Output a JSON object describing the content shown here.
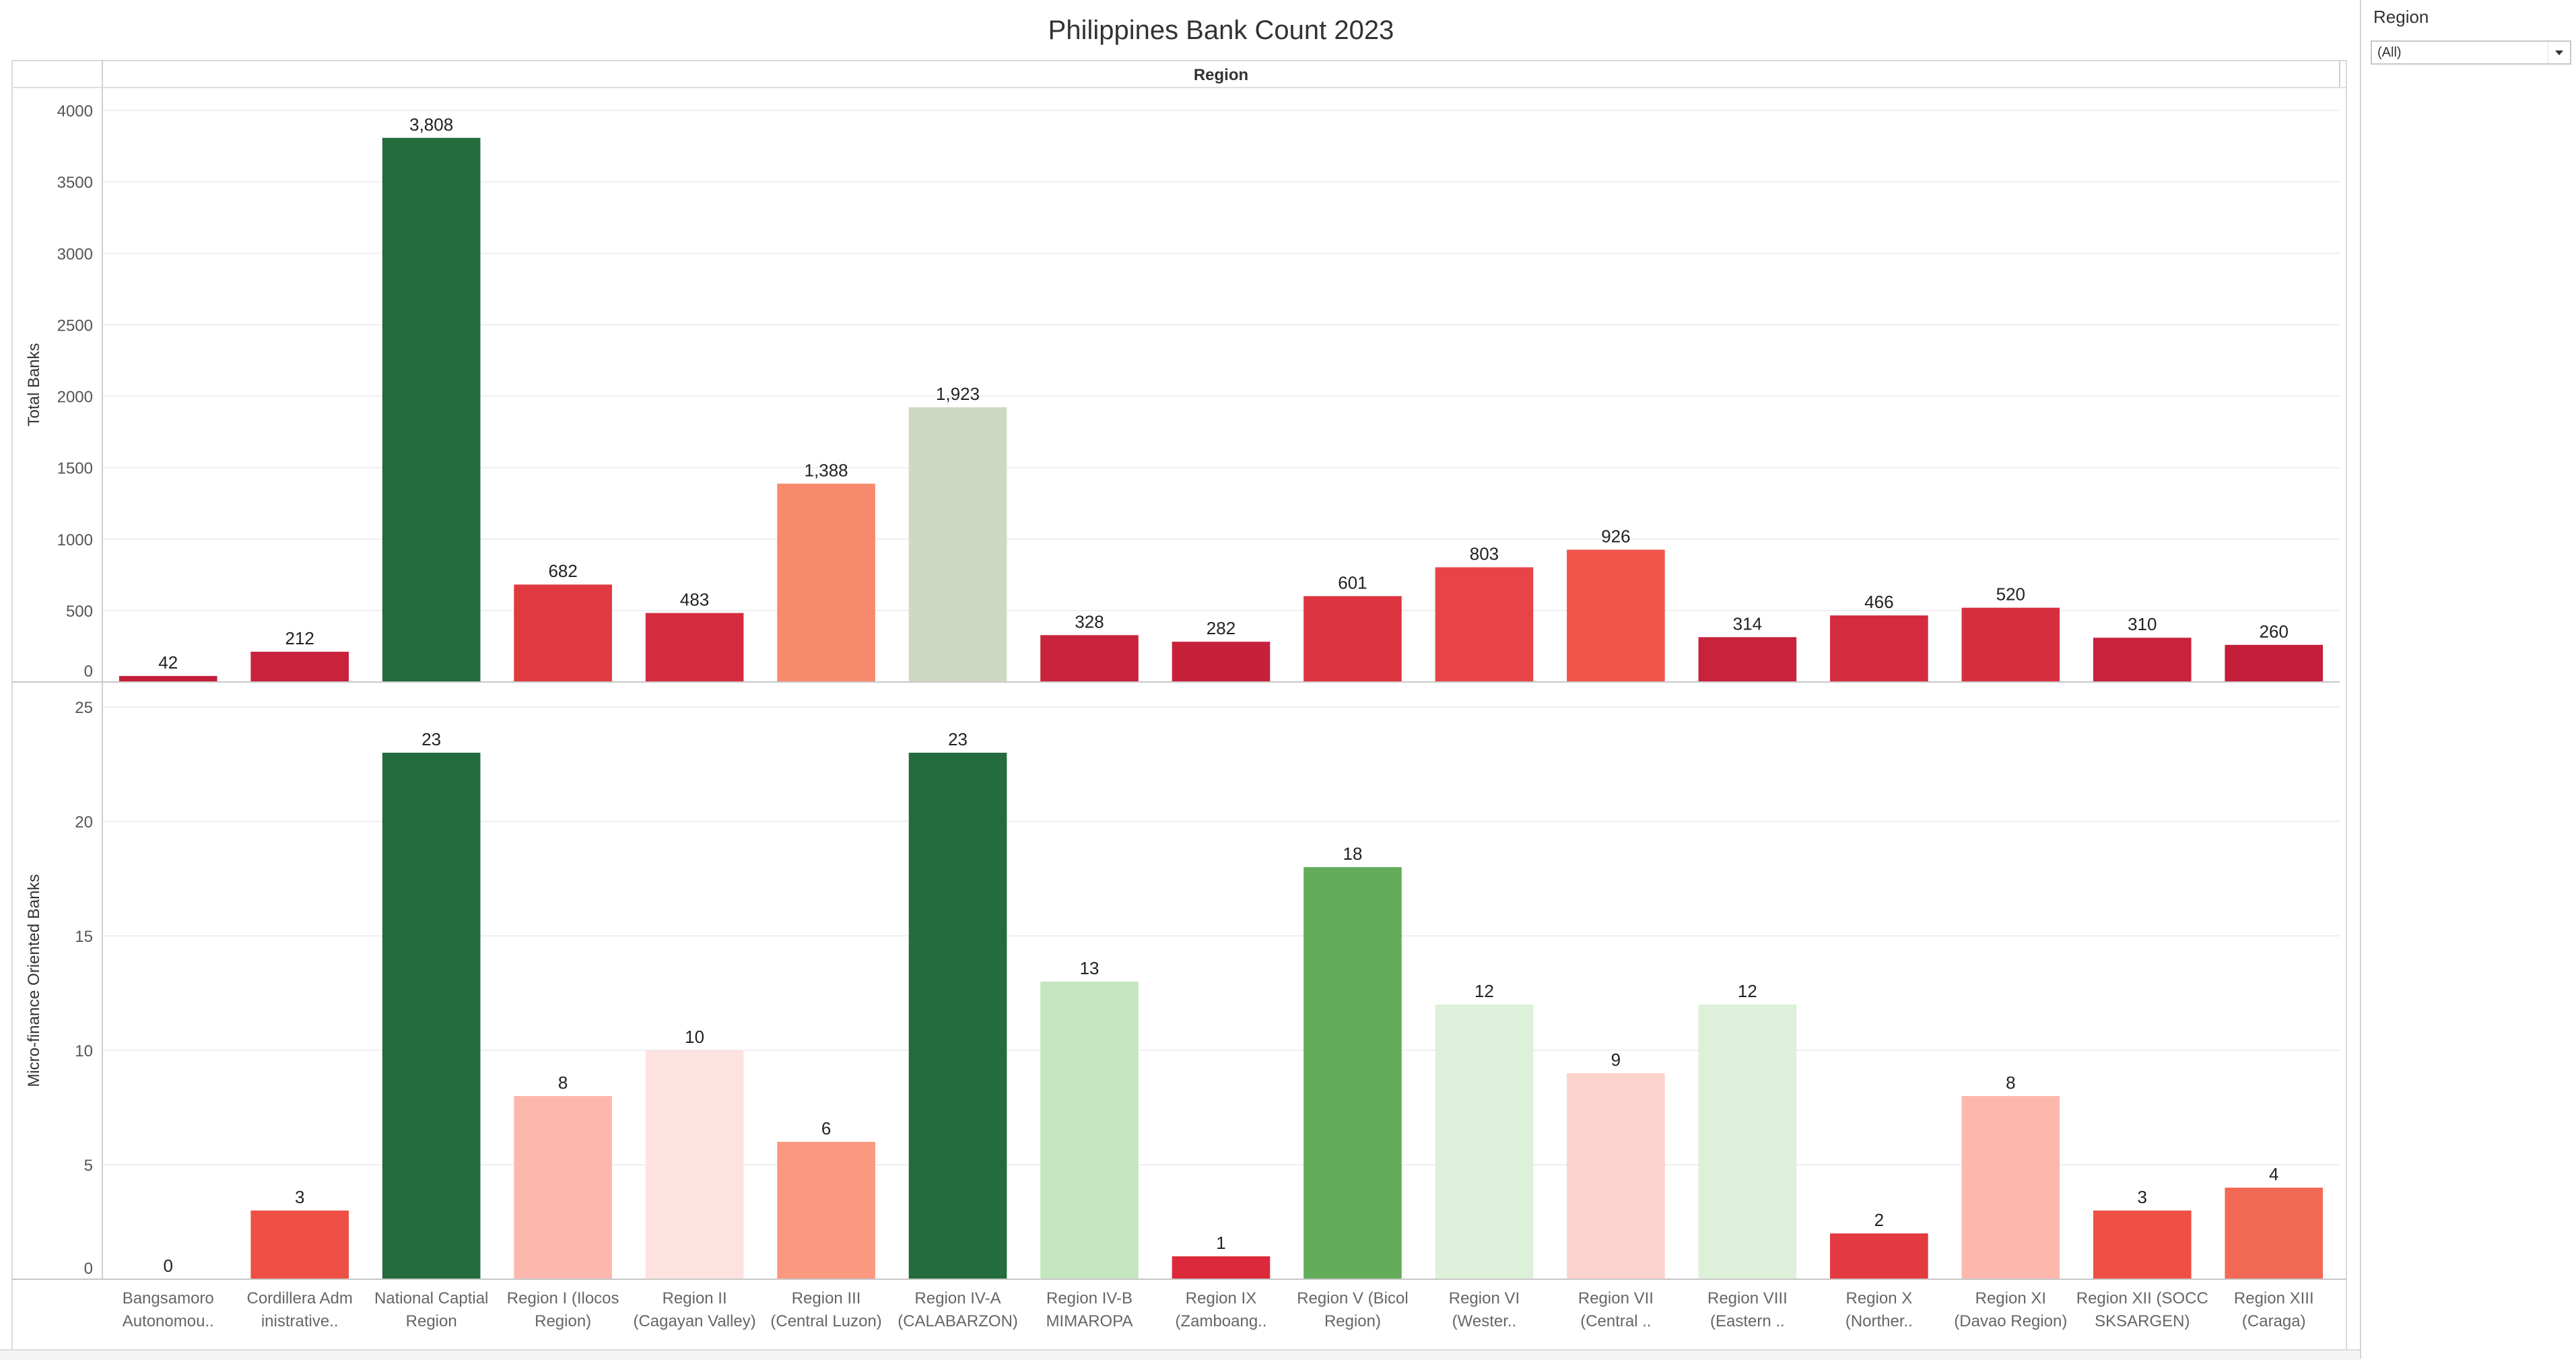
{
  "chart_data": {
    "type": "bar",
    "title": "Philippines Bank Count 2023",
    "column_header": "Region",
    "categories": [
      [
        "Bangsamoro",
        "Autonomou.."
      ],
      [
        "Cordillera Adm",
        "inistrative.."
      ],
      [
        "National Captial",
        "Region"
      ],
      [
        "Region I (Ilocos",
        "Region)"
      ],
      [
        "Region II",
        "(Cagayan Valley)"
      ],
      [
        "Region III",
        "(Central Luzon)"
      ],
      [
        "Region IV-A",
        "(CALABARZON)"
      ],
      [
        "Region IV-B",
        "MIMAROPA"
      ],
      [
        "Region IX",
        "(Zamboang.."
      ],
      [
        "Region V (Bicol",
        "Region)"
      ],
      [
        "Region VI",
        "(Wester.."
      ],
      [
        "Region VII",
        "(Central .."
      ],
      [
        "Region VIII",
        "(Eastern .."
      ],
      [
        "Region X",
        "(Norther.."
      ],
      [
        "Region XI",
        "(Davao Region)"
      ],
      [
        "Region XII (SOCC",
        "SKSARGEN)"
      ],
      [
        "Region XIII",
        "(Caraga)"
      ]
    ],
    "panels": [
      {
        "ylabel": "Total Banks",
        "ylim": [
          0,
          4000
        ],
        "yticks": [
          0,
          500,
          1000,
          1500,
          2000,
          2500,
          3000,
          3500,
          4000
        ],
        "values": [
          42,
          212,
          3808,
          682,
          483,
          1388,
          1923,
          328,
          282,
          601,
          803,
          926,
          314,
          466,
          520,
          310,
          260
        ],
        "labels": [
          "42",
          "212",
          "3,808",
          "682",
          "483",
          "1,388",
          "1,923",
          "328",
          "282",
          "601",
          "803",
          "926",
          "314",
          "466",
          "520",
          "310",
          "260"
        ],
        "colors": [
          "#c41e3a",
          "#c8223c",
          "#246b3d",
          "#e03a40",
          "#d42c3e",
          "#f78a6c",
          "#cfd9c2",
          "#c8223c",
          "#c6203b",
          "#dc343f",
          "#e84448",
          "#f0554c",
          "#c8223c",
          "#d42c3e",
          "#d6303f",
          "#c8223c",
          "#c41e3a"
        ]
      },
      {
        "ylabel": "Micro-finance Oriented Banks",
        "ylim": [
          0,
          25
        ],
        "yticks": [
          0,
          5,
          10,
          15,
          20,
          25
        ],
        "values": [
          0,
          3,
          23,
          8,
          10,
          6,
          23,
          13,
          1,
          18,
          12,
          9,
          12,
          2,
          8,
          3,
          4
        ],
        "labels": [
          "0",
          "3",
          "23",
          "8",
          "10",
          "6",
          "23",
          "13",
          "1",
          "18",
          "12",
          "9",
          "12",
          "2",
          "8",
          "3",
          "4"
        ],
        "colors": [
          "#ffffff",
          "#ee5045",
          "#246b3d",
          "#fdb8ad",
          "#fde2df",
          "#fb9880",
          "#246b3d",
          "#c4e6be",
          "#dc2a3c",
          "#63ad5a",
          "#ddf0d9",
          "#fcd2cd",
          "#ddf0d9",
          "#e23a40",
          "#fdb8ad",
          "#ee5045",
          "#f26a56"
        ]
      }
    ],
    "grid": true,
    "legend": "none"
  },
  "filter": {
    "title": "Region",
    "value": "(All)"
  }
}
